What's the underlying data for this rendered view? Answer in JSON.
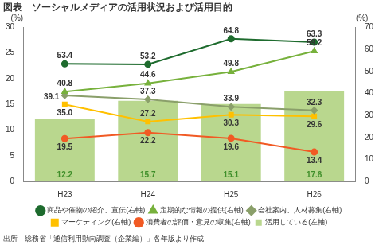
{
  "chart_data": {
    "type": "bar",
    "title": "図表　ソーシャルメディアの活用状況および活用目的",
    "source": "出所：総務省「通信利用動向調査（企業編）」各年版より作成",
    "ylabel": "(%)",
    "y2label": "(%)",
    "categories": [
      "H23",
      "H24",
      "H25",
      "H26"
    ],
    "ylim": [
      0,
      30
    ],
    "yticks": [
      0,
      5,
      10,
      15,
      20,
      25,
      30
    ],
    "y2lim": [
      0,
      70
    ],
    "y2ticks": [
      0,
      10,
      20,
      30,
      40,
      50,
      60,
      70
    ],
    "grid": false,
    "legend": "bottom",
    "data_labels": true,
    "series": [
      {
        "name": "活用している(左軸)",
        "type": "bar",
        "color": "#b9d78e",
        "values": [
          12.2,
          15.7,
          15.1,
          17.6
        ]
      },
      {
        "name": "商品や催物の紹介、宣伝(右軸)",
        "type": "line",
        "axis": "y2",
        "color": "#1e6b2e",
        "marker": "circle",
        "values": [
          53.4,
          53.2,
          64.8,
          63.3
        ]
      },
      {
        "name": "定期的な情報の提供(右軸)",
        "type": "line",
        "axis": "y2",
        "color": "#77b13c",
        "marker": "triangle",
        "values": [
          40.8,
          44.6,
          49.8,
          59.2
        ]
      },
      {
        "name": "会社案内、人材募集(右軸)",
        "type": "line",
        "axis": "y2",
        "color": "#8a9f6a",
        "marker": "diamond",
        "values": [
          39.1,
          37.3,
          33.9,
          32.3
        ]
      },
      {
        "name": "マーケティング(右軸)",
        "type": "line",
        "axis": "y2",
        "color": "#ffc000",
        "marker": "square",
        "values": [
          35.0,
          27.2,
          30.3,
          29.6
        ],
        "value_labels": [
          "35.0",
          "27.2",
          "30.3",
          "29.6"
        ]
      },
      {
        "name": "消費者の評価・意見の収集(右軸)",
        "type": "line",
        "axis": "y2",
        "color": "#f15a24",
        "marker": "circle",
        "values": [
          19.5,
          22.2,
          19.6,
          13.4
        ]
      }
    ]
  }
}
